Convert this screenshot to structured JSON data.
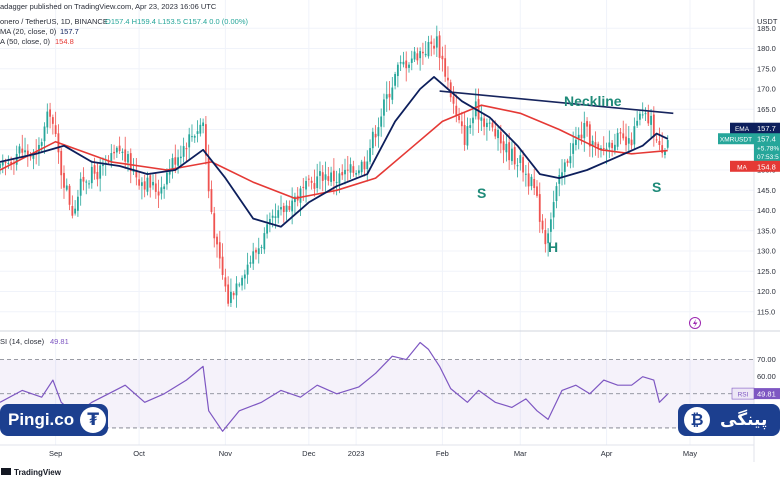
{
  "header": {
    "published": "adagger published on TradingView.com, Apr 23, 2023 16:06 UTC",
    "symbol": "onero / TetherUS, 1D, BINANCE",
    "ohlc": "O157.4  H159.4  L153.5  C157.4  0.0 (0.00%)",
    "ema_legend": "MA (20, close, 0)",
    "ema_value": "157.7",
    "ma_legend": "A (50, close, 0)",
    "ma_value": "154.8",
    "currency": "USDT"
  },
  "rsi_legend": {
    "label": "SI (14, close)",
    "value": "49.81"
  },
  "footer": "TradingView",
  "watermark_left": {
    "text": "Pingi.co",
    "icon": "tether-icon"
  },
  "watermark_right": {
    "text": "پینگی",
    "icon": "bitcoin-icon"
  },
  "annotations": {
    "neckline": "Neckline",
    "left_shoulder": "S",
    "head": "H",
    "right_shoulder": "S"
  },
  "price_tags": {
    "ema": {
      "label": "EMA",
      "value": "157.7"
    },
    "symbol": {
      "label": "XMRUSDT",
      "value": "157.4",
      "change": "+5.78%",
      "countdown": "07:53:5"
    },
    "ma": {
      "label": "MA",
      "value": "154.8"
    },
    "rsi": {
      "label": "RSI",
      "value": "49.81"
    }
  },
  "colors": {
    "up": "#26a69a",
    "down": "#ef5350",
    "ema": "#0d1f5c",
    "ma": "#e53935",
    "rsi": "#7e57c2",
    "neckline": "#17255e",
    "annotation": "#1e8a78",
    "watermark_bg": "#1c3f8f"
  },
  "chart_data": [
    {
      "type": "candlestick",
      "pair": "XMRUSDT",
      "interval": "1D",
      "y_axis": {
        "ylim": [
          111,
          190
        ],
        "ticks": [
          115,
          120,
          125,
          130,
          135,
          140,
          145,
          150,
          155,
          160,
          165,
          170,
          175,
          180,
          185
        ]
      },
      "x_axis": {
        "labels": [
          "Sep",
          "Oct",
          "Nov",
          "Dec",
          "2023",
          "Feb",
          "Mar",
          "Apr",
          "May"
        ],
        "xlim": [
          "2022-08-26",
          "2023-05-24"
        ]
      },
      "close_path": [
        [
          "2022-08-26",
          150
        ],
        [
          "2022-09-02",
          155
        ],
        [
          "2022-09-08",
          153
        ],
        [
          "2022-09-13",
          165
        ],
        [
          "2022-09-17",
          150
        ],
        [
          "2022-09-21",
          140
        ],
        [
          "2022-09-25",
          148
        ],
        [
          "2022-10-02",
          150
        ],
        [
          "2022-10-08",
          155
        ],
        [
          "2022-10-15",
          148
        ],
        [
          "2022-10-22",
          145
        ],
        [
          "2022-10-27",
          152
        ],
        [
          "2022-11-02",
          158
        ],
        [
          "2022-11-07",
          162
        ],
        [
          "2022-11-09",
          145
        ],
        [
          "2022-11-12",
          130
        ],
        [
          "2022-11-16",
          118
        ],
        [
          "2022-11-21",
          125
        ],
        [
          "2022-11-26",
          130
        ],
        [
          "2022-12-01",
          136
        ],
        [
          "2022-12-08",
          142
        ],
        [
          "2022-12-15",
          146
        ],
        [
          "2022-12-20",
          149
        ],
        [
          "2022-12-25",
          148
        ],
        [
          "2022-12-31",
          150
        ],
        [
          "2023-01-04",
          152
        ],
        [
          "2023-01-08",
          160
        ],
        [
          "2023-01-12",
          168
        ],
        [
          "2023-01-16",
          175
        ],
        [
          "2023-01-21",
          178
        ],
        [
          "2023-01-26",
          180
        ],
        [
          "2023-01-30",
          182
        ],
        [
          "2023-02-03",
          172
        ],
        [
          "2023-02-06",
          163
        ],
        [
          "2023-02-09",
          158
        ],
        [
          "2023-02-13",
          165
        ],
        [
          "2023-02-19",
          160
        ],
        [
          "2023-02-24",
          155
        ],
        [
          "2023-03-01",
          152
        ],
        [
          "2023-03-06",
          145
        ],
        [
          "2023-03-10",
          133
        ],
        [
          "2023-03-14",
          145
        ],
        [
          "2023-03-19",
          155
        ],
        [
          "2023-03-24",
          160
        ],
        [
          "2023-03-29",
          154
        ],
        [
          "2023-04-04",
          158
        ],
        [
          "2023-04-09",
          156
        ],
        [
          "2023-04-13",
          163
        ],
        [
          "2023-04-17",
          162
        ],
        [
          "2023-04-20",
          155
        ],
        [
          "2023-04-23",
          157.4
        ]
      ],
      "series": [
        {
          "name": "EMA (20)",
          "values": [
            [
              "2022-08-26",
              152
            ],
            [
              "2022-09-08",
              154
            ],
            [
              "2022-09-18",
              156
            ],
            [
              "2022-09-28",
              152
            ],
            [
              "2022-10-08",
              151
            ],
            [
              "2022-10-18",
              149
            ],
            [
              "2022-10-28",
              150
            ],
            [
              "2022-11-07",
              155
            ],
            [
              "2022-11-15",
              148
            ],
            [
              "2022-11-25",
              138
            ],
            [
              "2022-12-05",
              136
            ],
            [
              "2022-12-15",
              142
            ],
            [
              "2022-12-25",
              146
            ],
            [
              "2023-01-05",
              149
            ],
            [
              "2023-01-15",
              162
            ],
            [
              "2023-01-24",
              170
            ],
            [
              "2023-01-29",
              173
            ],
            [
              "2023-02-08",
              167
            ],
            [
              "2023-02-18",
              163
            ],
            [
              "2023-02-28",
              156
            ],
            [
              "2023-03-08",
              149
            ],
            [
              "2023-03-15",
              148
            ],
            [
              "2023-03-25",
              150
            ],
            [
              "2023-04-04",
              153
            ],
            [
              "2023-04-14",
              156
            ],
            [
              "2023-04-19",
              159
            ],
            [
              "2023-04-23",
              157.7
            ]
          ]
        },
        {
          "name": "MA (50)",
          "values": [
            [
              "2022-08-26",
              150
            ],
            [
              "2022-09-15",
              157
            ],
            [
              "2022-10-05",
              152
            ],
            [
              "2022-10-25",
              150
            ],
            [
              "2022-11-10",
              152
            ],
            [
              "2022-11-25",
              147
            ],
            [
              "2022-12-10",
              143
            ],
            [
              "2022-12-25",
              145
            ],
            [
              "2023-01-08",
              148
            ],
            [
              "2023-01-20",
              155
            ],
            [
              "2023-02-01",
              162
            ],
            [
              "2023-02-15",
              166
            ],
            [
              "2023-03-01",
              164
            ],
            [
              "2023-03-15",
              160
            ],
            [
              "2023-03-30",
              155
            ],
            [
              "2023-04-10",
              154
            ],
            [
              "2023-04-23",
              154.8
            ]
          ]
        }
      ],
      "neckline": {
        "from": [
          "2023-01-31",
          169.5
        ],
        "to": [
          "2023-04-25",
          164
        ]
      }
    },
    {
      "type": "line",
      "name": "RSI (14)",
      "ylim": [
        20,
        85
      ],
      "ticks": [
        40,
        50,
        60,
        70
      ],
      "tick_labels": [
        "40.00",
        "50.00",
        "60.00",
        "70.00"
      ],
      "bands": [
        30,
        50,
        70
      ],
      "values": [
        [
          "2022-08-26",
          45
        ],
        [
          "2022-09-03",
          52
        ],
        [
          "2022-09-10",
          48
        ],
        [
          "2022-09-14",
          58
        ],
        [
          "2022-09-17",
          45
        ],
        [
          "2022-09-22",
          38
        ],
        [
          "2022-09-28",
          45
        ],
        [
          "2022-10-04",
          50
        ],
        [
          "2022-10-10",
          55
        ],
        [
          "2022-10-17",
          45
        ],
        [
          "2022-10-24",
          50
        ],
        [
          "2022-11-01",
          58
        ],
        [
          "2022-11-07",
          66
        ],
        [
          "2022-11-09",
          40
        ],
        [
          "2022-11-14",
          28
        ],
        [
          "2022-11-20",
          40
        ],
        [
          "2022-11-28",
          45
        ],
        [
          "2022-12-05",
          52
        ],
        [
          "2022-12-12",
          48
        ],
        [
          "2022-12-18",
          55
        ],
        [
          "2022-12-25",
          50
        ],
        [
          "2023-01-02",
          54
        ],
        [
          "2023-01-08",
          62
        ],
        [
          "2023-01-14",
          72
        ],
        [
          "2023-01-19",
          70
        ],
        [
          "2023-01-24",
          80
        ],
        [
          "2023-01-27",
          76
        ],
        [
          "2023-01-31",
          66
        ],
        [
          "2023-02-04",
          53
        ],
        [
          "2023-02-10",
          45
        ],
        [
          "2023-02-14",
          52
        ],
        [
          "2023-02-20",
          45
        ],
        [
          "2023-02-26",
          42
        ],
        [
          "2023-03-03",
          47
        ],
        [
          "2023-03-07",
          40
        ],
        [
          "2023-03-11",
          35
        ],
        [
          "2023-03-16",
          52
        ],
        [
          "2023-03-21",
          55
        ],
        [
          "2023-03-26",
          50
        ],
        [
          "2023-03-31",
          58
        ],
        [
          "2023-04-05",
          55
        ],
        [
          "2023-04-10",
          55
        ],
        [
          "2023-04-14",
          60
        ],
        [
          "2023-04-18",
          58
        ],
        [
          "2023-04-20",
          45
        ],
        [
          "2023-04-23",
          49.81
        ]
      ]
    }
  ]
}
